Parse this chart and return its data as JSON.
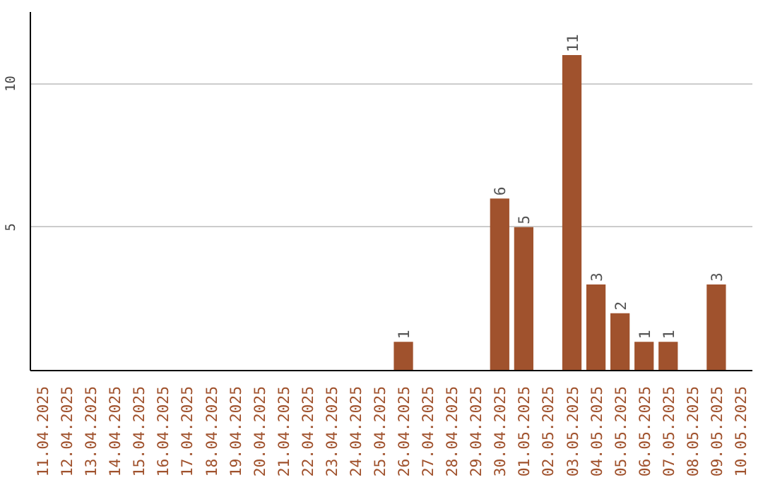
{
  "chart_data": {
    "type": "bar",
    "categories": [
      "11.04.2025",
      "12.04.2025",
      "13.04.2025",
      "14.04.2025",
      "15.04.2025",
      "16.04.2025",
      "17.04.2025",
      "18.04.2025",
      "19.04.2025",
      "20.04.2025",
      "21.04.2025",
      "22.04.2025",
      "23.04.2025",
      "24.04.2025",
      "25.04.2025",
      "26.04.2025",
      "27.04.2025",
      "28.04.2025",
      "29.04.2025",
      "30.04.2025",
      "01.05.2025",
      "02.05.2025",
      "03.05.2025",
      "04.05.2025",
      "05.05.2025",
      "06.05.2025",
      "07.05.2025",
      "08.05.2025",
      "09.05.2025",
      "10.05.2025"
    ],
    "values": [
      0,
      0,
      0,
      0,
      0,
      0,
      0,
      0,
      0,
      0,
      0,
      0,
      0,
      0,
      0,
      1,
      0,
      0,
      0,
      6,
      5,
      0,
      11,
      3,
      2,
      1,
      1,
      0,
      3,
      0
    ],
    "value_labels": [
      null,
      null,
      null,
      null,
      null,
      null,
      null,
      null,
      null,
      null,
      null,
      null,
      null,
      null,
      null,
      "1",
      null,
      null,
      null,
      "6",
      "5",
      null,
      "11",
      "3",
      "2",
      "1",
      "1",
      null,
      "3",
      null
    ],
    "color": "#a0522d",
    "ylim": [
      0,
      12.5
    ],
    "yticks": [
      5,
      10
    ],
    "grid": "y"
  }
}
